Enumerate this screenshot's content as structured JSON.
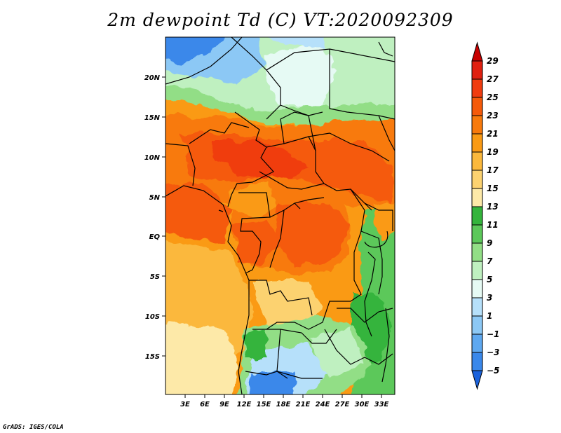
{
  "title": "2m dewpoint Td (C) VT:2020092309",
  "credit": "GrADS: IGES/COLA",
  "map": {
    "lat_labels": [
      "20N",
      "15N",
      "10N",
      "5N",
      "EQ",
      "5S",
      "10S",
      "15S"
    ],
    "lon_labels": [
      "3E",
      "6E",
      "9E",
      "12E",
      "15E",
      "18E",
      "21E",
      "24E",
      "27E",
      "30E",
      "33E"
    ]
  },
  "colorbar": {
    "labels": [
      "29",
      "27",
      "25",
      "23",
      "21",
      "19",
      "17",
      "15",
      "13",
      "11",
      "9",
      "7",
      "5",
      "3",
      "1",
      "−1",
      "−3",
      "−5"
    ],
    "colors": [
      "#c80000",
      "#e02010",
      "#f03c10",
      "#f55a0a",
      "#f87a0c",
      "#fa9a14",
      "#fbb83c",
      "#fcd270",
      "#fde9a8",
      "#34b43c",
      "#5cc85a",
      "#92de86",
      "#bff0c0",
      "#e6faf4",
      "#b6e0fa",
      "#8cc8f5",
      "#5ea8f0",
      "#3a88ea",
      "#1a62dc"
    ]
  }
}
